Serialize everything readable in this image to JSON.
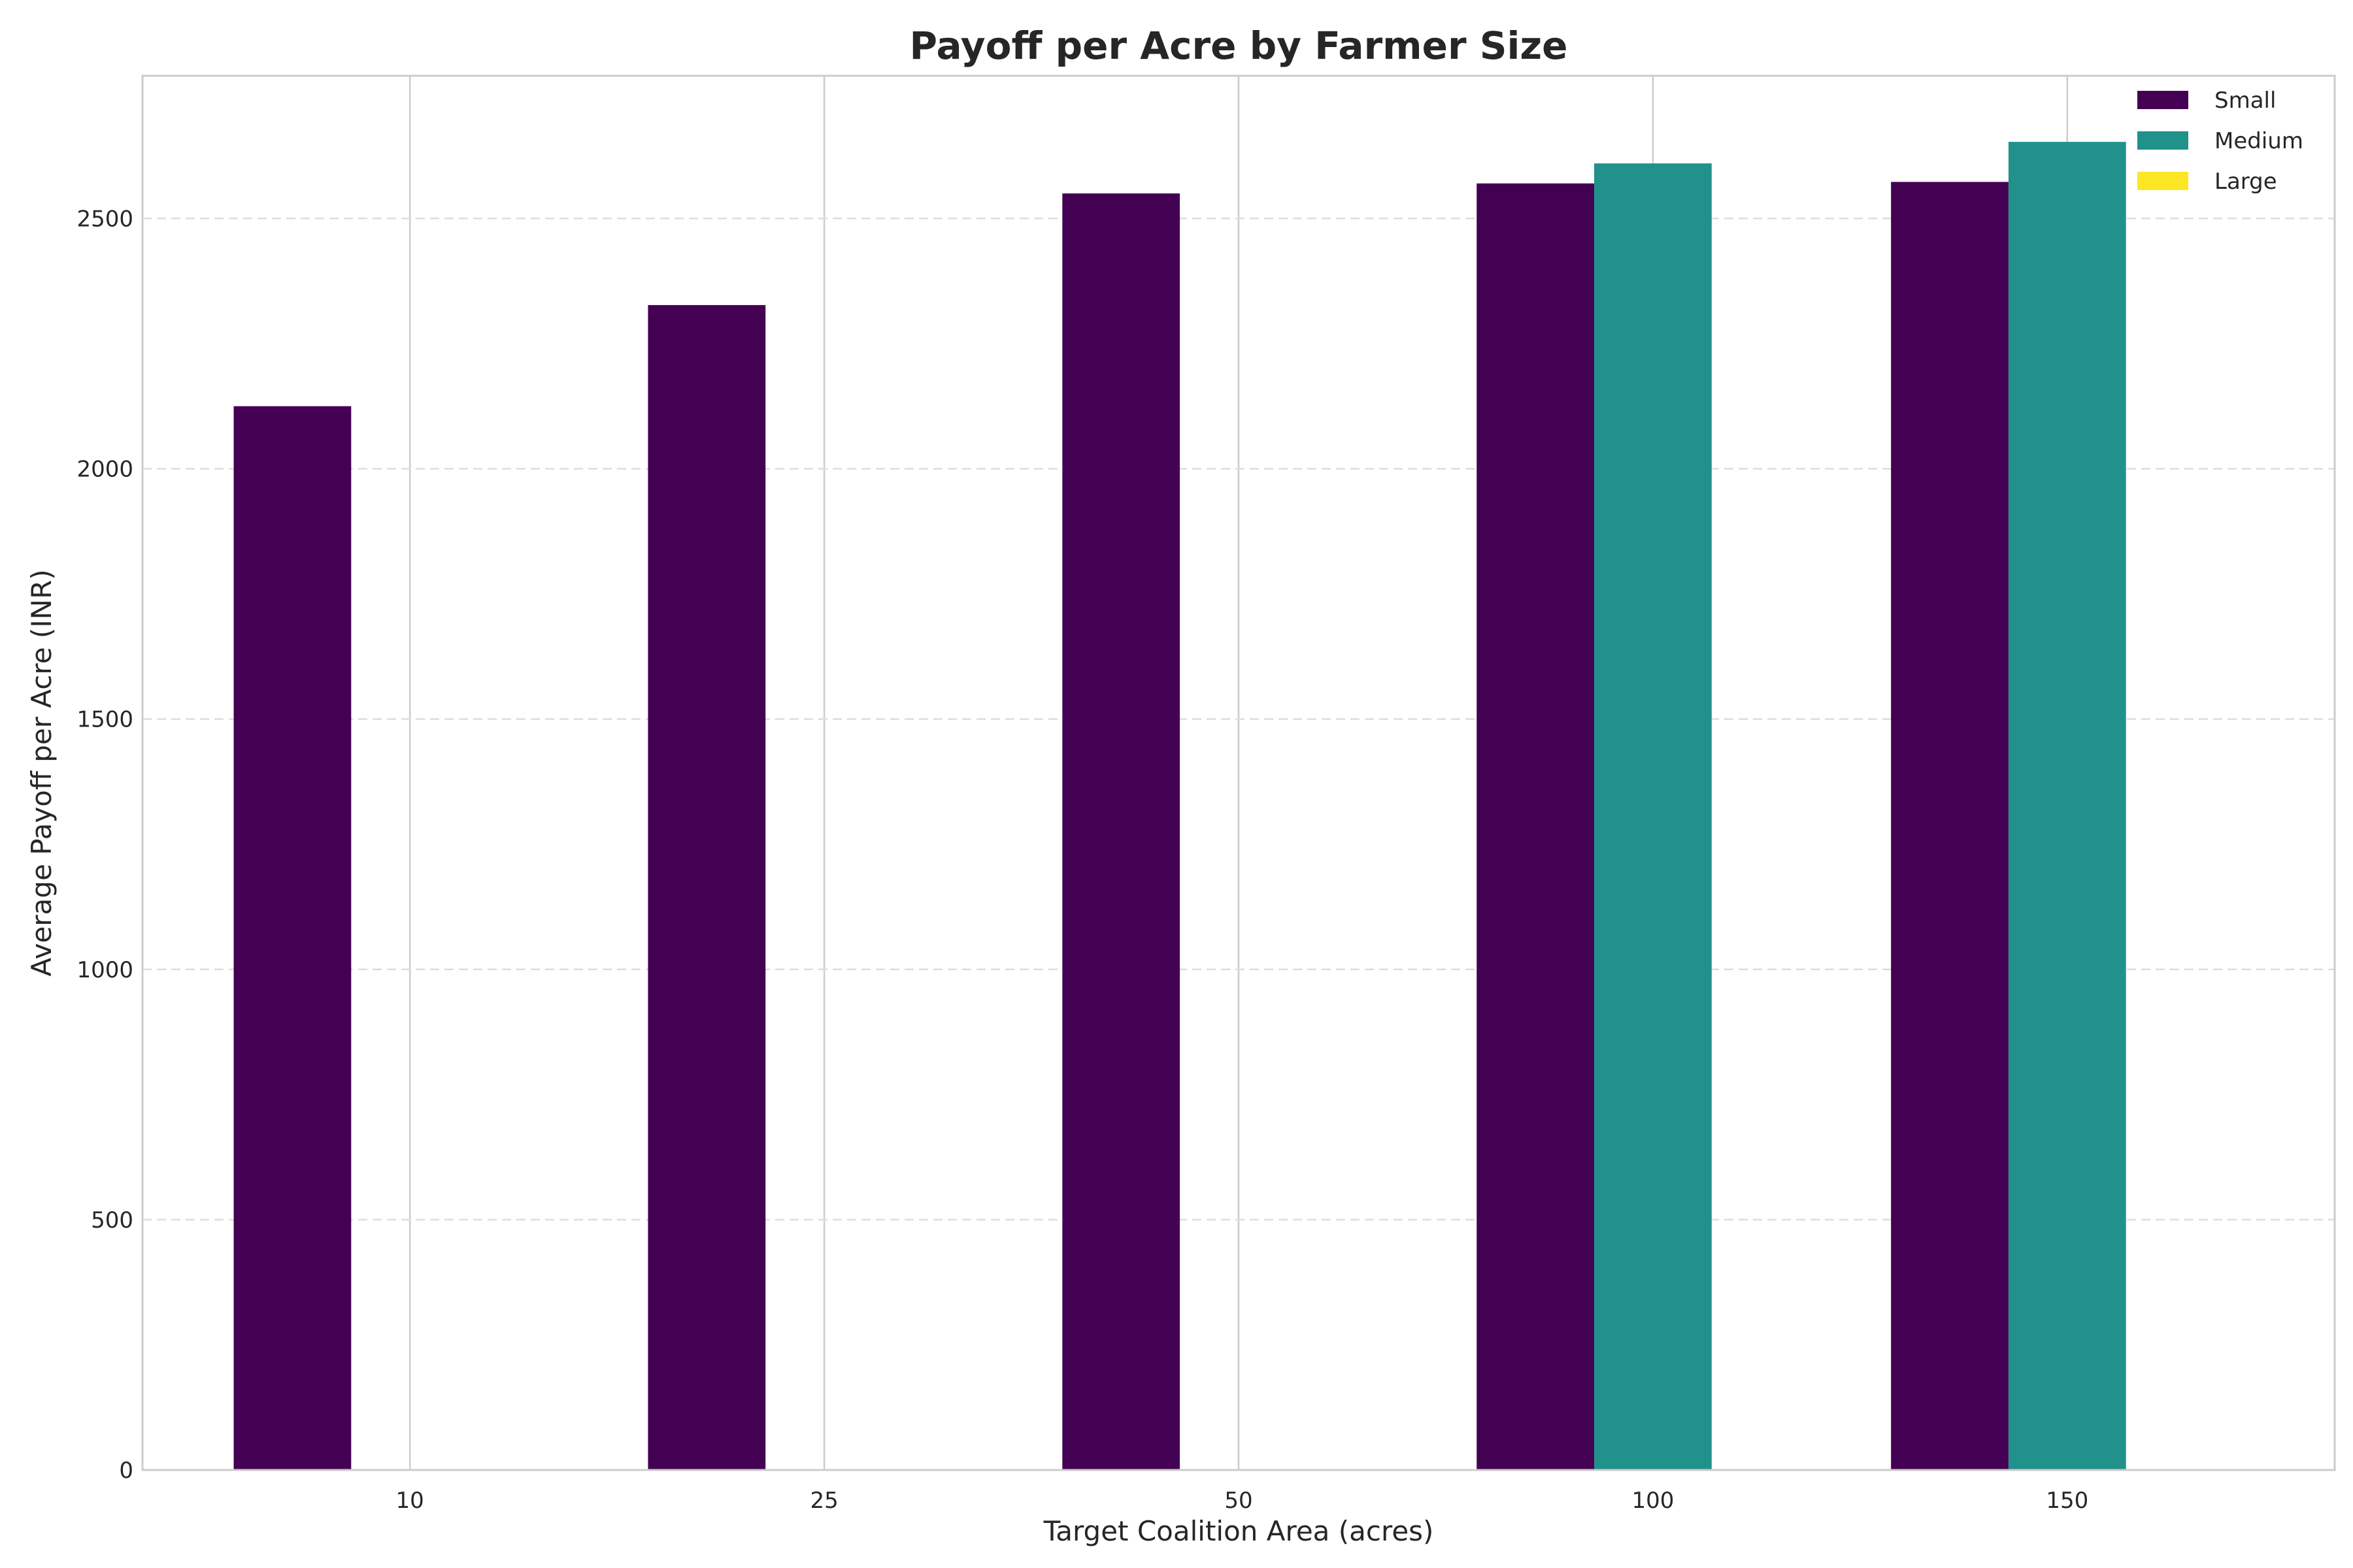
{
  "chart_data": {
    "type": "bar",
    "title": "Payoff per Acre by Farmer Size",
    "xlabel": "Target Coalition Area (acres)",
    "ylabel": "Average Payoff per Acre (INR)",
    "categories": [
      "10",
      "25",
      "50",
      "100",
      "150"
    ],
    "series": [
      {
        "name": "Small",
        "color": "#440154",
        "values": [
          2125,
          2327,
          2550,
          2570,
          2573
        ]
      },
      {
        "name": "Medium",
        "color": "#21918c",
        "values": [
          null,
          null,
          null,
          2610,
          2653
        ]
      },
      {
        "name": "Large",
        "color": "#fde725",
        "values": [
          null,
          null,
          null,
          null,
          null
        ]
      }
    ],
    "ylim": [
      0,
      2785
    ],
    "yticks": [
      0,
      500,
      1000,
      1500,
      2000,
      2500
    ],
    "grid": {
      "y": "dashed",
      "x": "solid"
    },
    "legend_position": "top-right"
  }
}
